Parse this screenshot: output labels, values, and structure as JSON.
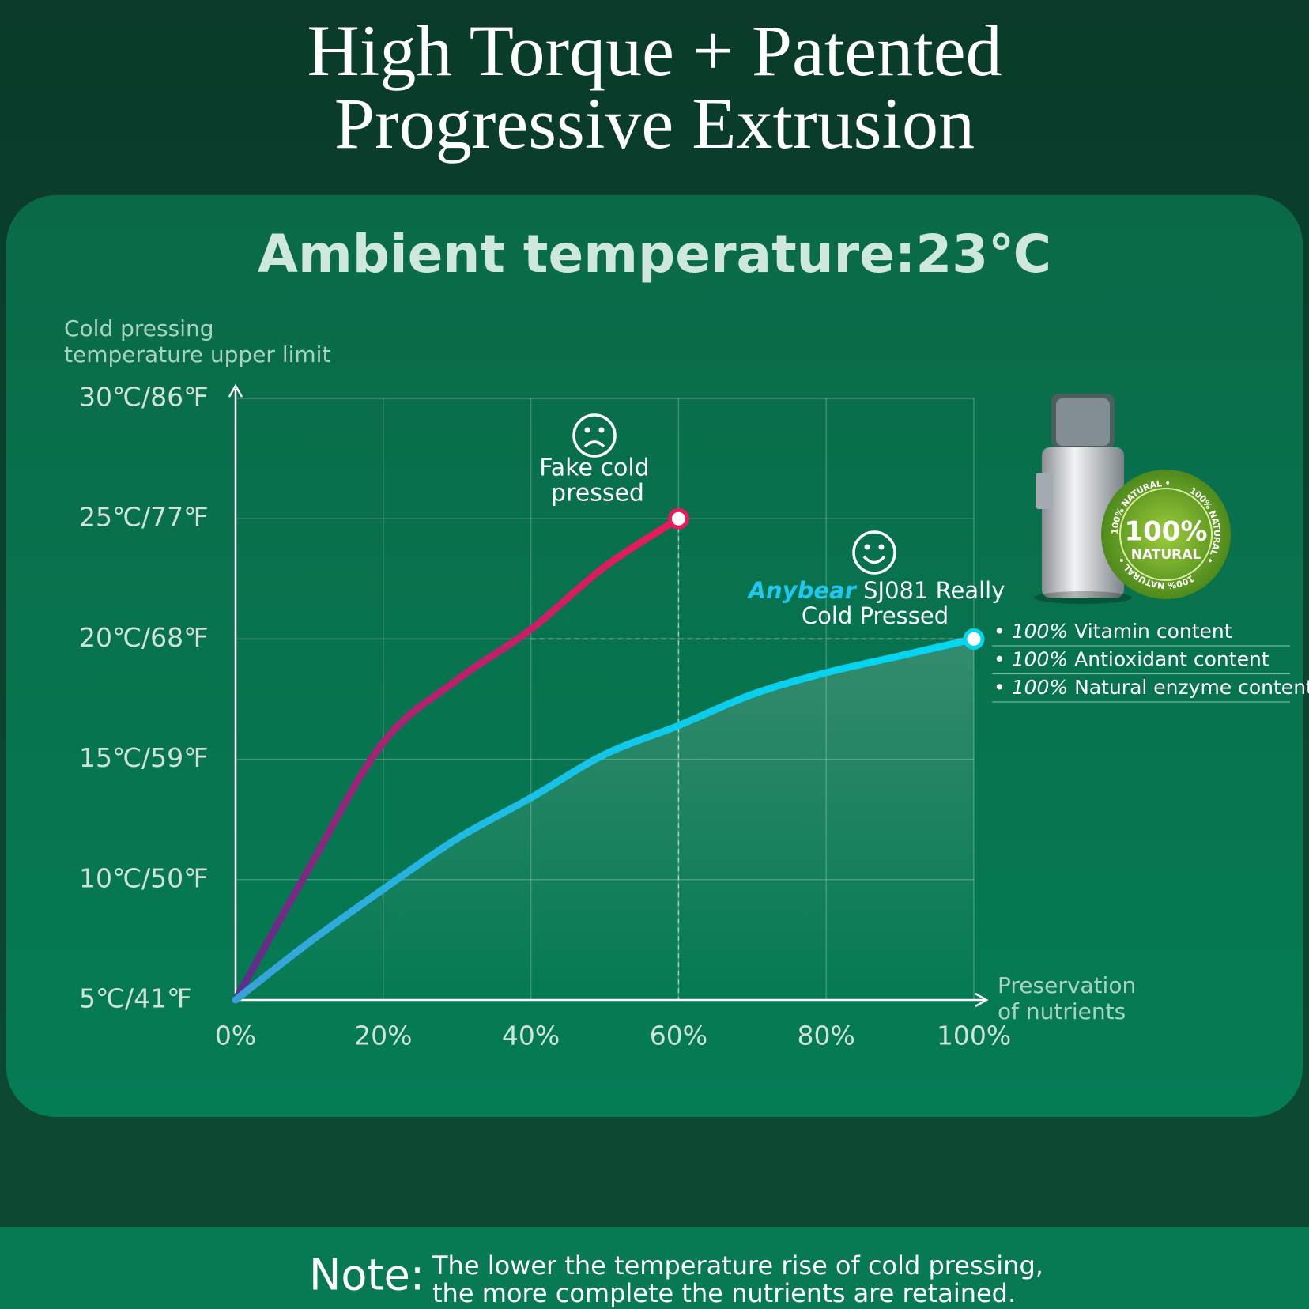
{
  "chart_data": {
    "type": "line",
    "title": [
      "High Torque + Patented",
      "Progressive Extrusion"
    ],
    "subtitle": "Ambient temperature:23℃",
    "y_label": [
      "Cold pressing",
      "temperature upper limit"
    ],
    "x_label": [
      "Preservation",
      "of nutrients"
    ],
    "x": [
      0,
      10,
      20,
      30,
      40,
      50,
      60,
      70,
      80,
      90,
      100
    ],
    "series": [
      {
        "name": [
          "Fake cold",
          "pressed"
        ],
        "color": [
          "#5a2d90",
          "#ea1a5a"
        ],
        "values": [
          5,
          10.5,
          15.7,
          18.3,
          20.4,
          23.0,
          25,
          null,
          null,
          null,
          null
        ]
      },
      {
        "brand": "Anybear",
        "brand_color": "#1ec8f0",
        "name": [
          "SJ081 Really",
          "Cold Pressed"
        ],
        "color": [
          "#3aa0d8",
          "#00d8f2"
        ],
        "values": [
          5,
          7.4,
          9.6,
          11.7,
          13.4,
          15.2,
          16.4,
          17.7,
          18.6,
          19.3,
          20
        ]
      }
    ],
    "xlim": [
      0,
      100
    ],
    "xticks": [
      {
        "value": 0,
        "label": "0%"
      },
      {
        "value": 20,
        "label": "20%"
      },
      {
        "value": 40,
        "label": "40%"
      },
      {
        "value": 60,
        "label": "60%"
      },
      {
        "value": 80,
        "label": "80%"
      },
      {
        "value": 100,
        "label": "100%"
      }
    ],
    "ylim": [
      5,
      30
    ],
    "yticks": [
      {
        "value": 5,
        "label": "5℃/41℉"
      },
      {
        "value": 10,
        "label": "10℃/50℉"
      },
      {
        "value": 15,
        "label": "15℃/59℉"
      },
      {
        "value": 20,
        "label": "20℃/68℉"
      },
      {
        "value": 25,
        "label": "25℃/77℉"
      },
      {
        "value": 30,
        "label": "30℃/86℉"
      }
    ],
    "grid": true
  },
  "features": [
    {
      "amount": "100%",
      "text": "Vitamin content"
    },
    {
      "amount": "100%",
      "text": "Antioxidant content"
    },
    {
      "amount": "100%",
      "text": "Natural enzyme content"
    }
  ],
  "badge": {
    "big": "100%",
    "small": "NATURAL",
    "ring": "100% NATURAL •"
  },
  "note": {
    "label": "Note:",
    "lines": [
      "The lower the temperature rise of cold pressing,",
      "the more complete the nutrients are retained."
    ]
  }
}
